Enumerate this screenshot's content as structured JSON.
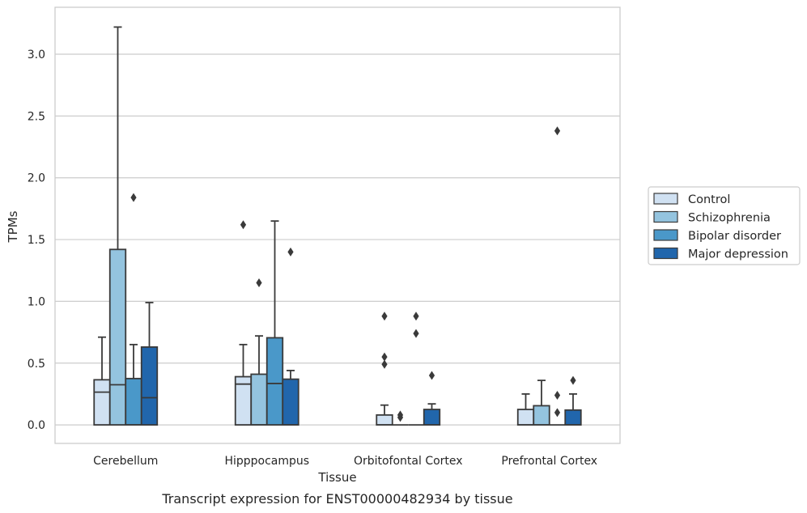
{
  "caption": "Transcript expression for ENST00000482934 by tissue",
  "chart_data": {
    "type": "box",
    "title": "",
    "xlabel": "Tissue",
    "ylabel": "TPMs",
    "ylim": [
      -0.15,
      3.38
    ],
    "yticks": [
      "0.0",
      "0.5",
      "1.0",
      "1.5",
      "2.0",
      "2.5",
      "3.0"
    ],
    "grid": true,
    "legend_position": "right",
    "categories": [
      "Cerebellum",
      "Hipppocampus",
      "Orbitofontal Cortex",
      "Prefrontal Cortex"
    ],
    "series": [
      {
        "name": "Control",
        "color": "#d0e1f2",
        "boxes": [
          {
            "q1": 0.0,
            "median": 0.265,
            "q3": 0.365,
            "whisker_low": 0.0,
            "whisker_high": 0.71,
            "outliers": []
          },
          {
            "q1": 0.0,
            "median": 0.33,
            "q3": 0.39,
            "whisker_low": 0.0,
            "whisker_high": 0.65,
            "outliers": [
              1.62
            ]
          },
          {
            "q1": 0.0,
            "median": 0.0,
            "q3": 0.08,
            "whisker_low": 0.0,
            "whisker_high": 0.16,
            "outliers": [
              0.88,
              0.55,
              0.49
            ]
          },
          {
            "q1": 0.0,
            "median": 0.0,
            "q3": 0.125,
            "whisker_low": 0.0,
            "whisker_high": 0.25,
            "outliers": []
          }
        ]
      },
      {
        "name": "Schizophrenia",
        "color": "#94c4df",
        "boxes": [
          {
            "q1": 0.0,
            "median": 0.325,
            "q3": 1.42,
            "whisker_low": 0.0,
            "whisker_high": 3.22,
            "outliers": []
          },
          {
            "q1": 0.0,
            "median": 0.0,
            "q3": 0.41,
            "whisker_low": 0.0,
            "whisker_high": 0.72,
            "outliers": [
              1.15
            ]
          },
          {
            "q1": 0.0,
            "median": 0.0,
            "q3": 0.0,
            "whisker_low": 0.0,
            "whisker_high": 0.0,
            "outliers": [
              0.08,
              0.06
            ]
          },
          {
            "q1": 0.0,
            "median": 0.0,
            "q3": 0.155,
            "whisker_low": 0.0,
            "whisker_high": 0.36,
            "outliers": []
          }
        ]
      },
      {
        "name": "Bipolar disorder",
        "color": "#4a98c9",
        "boxes": [
          {
            "q1": 0.0,
            "median": 0.0,
            "q3": 0.375,
            "whisker_low": 0.0,
            "whisker_high": 0.65,
            "outliers": [
              1.84
            ]
          },
          {
            "q1": 0.0,
            "median": 0.335,
            "q3": 0.705,
            "whisker_low": 0.0,
            "whisker_high": 1.65,
            "outliers": []
          },
          {
            "q1": 0.0,
            "median": 0.0,
            "q3": 0.0,
            "whisker_low": 0.0,
            "whisker_high": 0.0,
            "outliers": [
              0.88,
              0.74
            ]
          },
          {
            "q1": 0.0,
            "median": 0.0,
            "q3": 0.0,
            "whisker_low": 0.0,
            "whisker_high": 0.0,
            "outliers": [
              2.38,
              0.24,
              0.1
            ]
          }
        ]
      },
      {
        "name": "Major depression",
        "color": "#2166ac",
        "boxes": [
          {
            "q1": 0.0,
            "median": 0.22,
            "q3": 0.63,
            "whisker_low": 0.0,
            "whisker_high": 0.99,
            "outliers": []
          },
          {
            "q1": 0.0,
            "median": 0.0,
            "q3": 0.37,
            "whisker_low": 0.0,
            "whisker_high": 0.44,
            "outliers": [
              1.4
            ]
          },
          {
            "q1": 0.0,
            "median": 0.0,
            "q3": 0.125,
            "whisker_low": 0.0,
            "whisker_high": 0.17,
            "outliers": [
              0.4
            ]
          },
          {
            "q1": 0.0,
            "median": 0.0,
            "q3": 0.12,
            "whisker_low": 0.0,
            "whisker_high": 0.25,
            "outliers": [
              0.36
            ]
          }
        ]
      }
    ]
  }
}
